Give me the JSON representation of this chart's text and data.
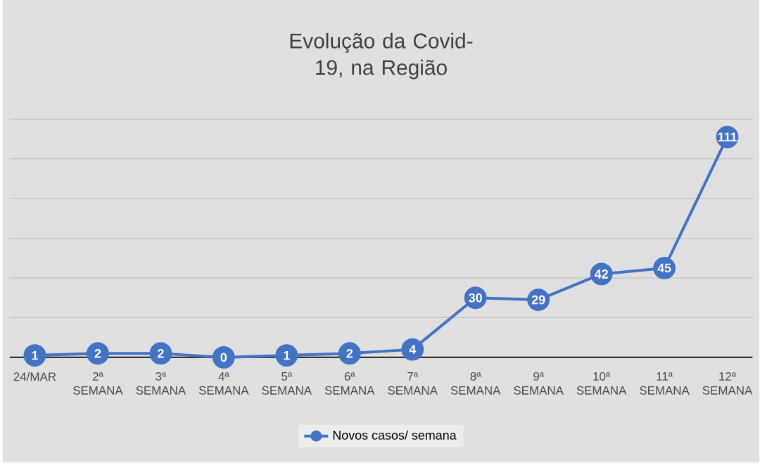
{
  "chart_data": {
    "type": "line",
    "title": "Evolução da Covid-19, na Região",
    "categories": [
      "24/MAR",
      "2ª SEMANA",
      "3ª SEMANA",
      "4ª SEMANA",
      "5ª SEMANA",
      "6ª SEMANA",
      "7ª SEMANA",
      "8ª SEMANA",
      "9ª SEMANA",
      "10ª SEMANA",
      "11ª SEMANA",
      "12ª SEMANA"
    ],
    "series": [
      {
        "name": "Novos casos/ semana",
        "color": "#4472c4",
        "values": [
          1,
          2,
          2,
          0,
          1,
          2,
          4,
          30,
          29,
          42,
          45,
          111
        ]
      }
    ],
    "ylim": [
      0,
      120
    ],
    "yticks": [
      {
        "value": 0,
        "label": null
      },
      {
        "value": 20,
        "label": null
      },
      {
        "value": 40,
        "label": null
      },
      {
        "value": 60,
        "label": null
      },
      {
        "value": 80,
        "label": null
      },
      {
        "value": 100,
        "label": null
      },
      {
        "value": 120,
        "label": null
      }
    ],
    "tick_labels": "x",
    "grid": "y",
    "legend": "bottom",
    "marker": "circle",
    "line_style": "solid",
    "data_labels": true
  }
}
